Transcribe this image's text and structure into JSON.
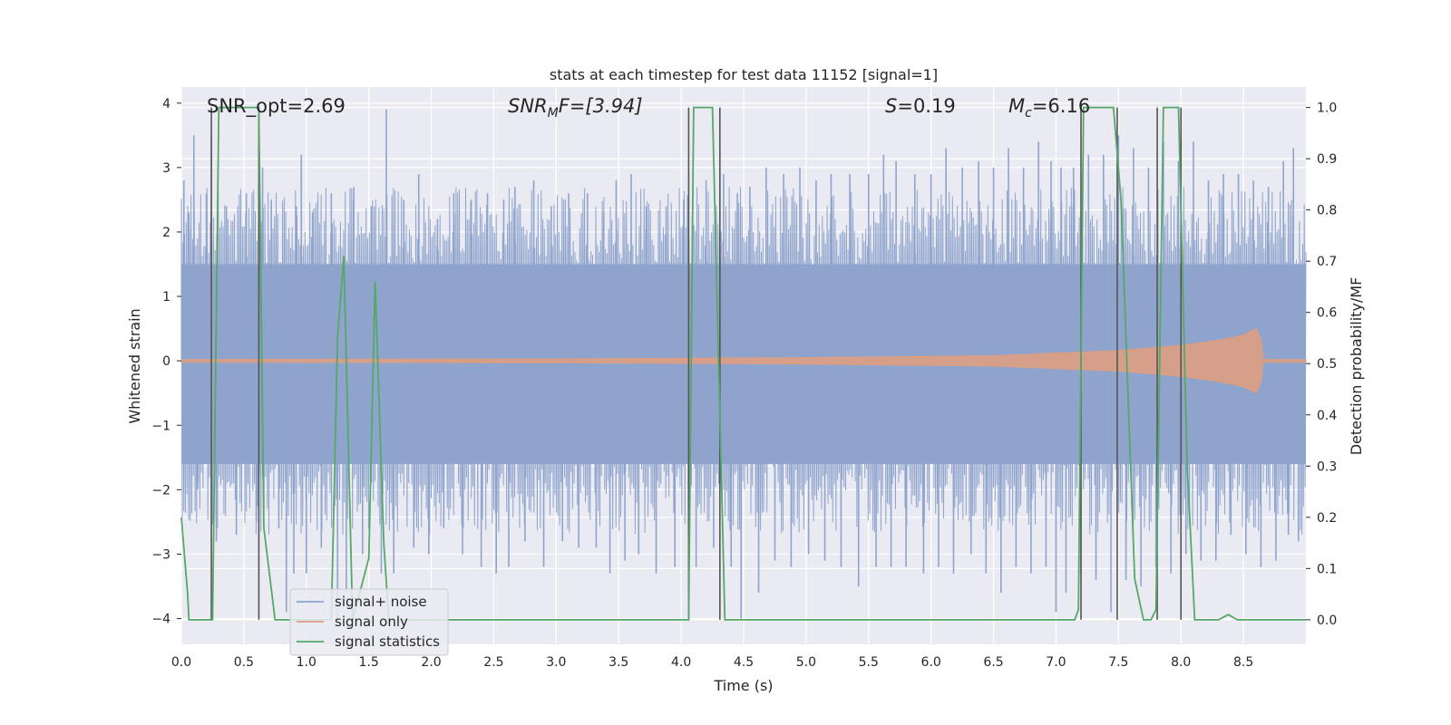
{
  "chart_data": {
    "type": "line",
    "title": "stats at each timestep for test data 11152 [signal=1]",
    "xlabel": "Time (s)",
    "ylabel": "Whitened strain",
    "y2label": "Detection probability/MF",
    "xlim": [
      0.0,
      9.0
    ],
    "ylim": [
      -4.4,
      4.25
    ],
    "y2lim": [
      -0.048,
      1.04
    ],
    "xticks": [
      "0.0",
      "0.5",
      "1.0",
      "1.5",
      "2.0",
      "2.5",
      "3.0",
      "3.5",
      "4.0",
      "4.5",
      "5.0",
      "5.5",
      "6.0",
      "6.5",
      "7.0",
      "7.5",
      "8.0",
      "8.5"
    ],
    "yticks": [
      "−4",
      "−3",
      "−2",
      "−1",
      "0",
      "1",
      "2",
      "3",
      "4"
    ],
    "y2ticks": [
      "0.0",
      "0.1",
      "0.2",
      "0.3",
      "0.4",
      "0.5",
      "0.6",
      "0.7",
      "0.8",
      "0.9",
      "1.0"
    ],
    "grid": true,
    "legend_position": "lower-left",
    "annotations": {
      "snr_opt": "SNR_opt=2.69",
      "snr_mf_main": "SNR",
      "snr_mf_sub": "M",
      "snr_mf_rest": "F=[3.94]",
      "s_main": "S",
      "s_rest": "=0.19",
      "mc_main": "M",
      "mc_sub": "c",
      "mc_rest": "=6.16"
    },
    "series": [
      {
        "name": "signal+ noise",
        "color": "#8fa4cc",
        "description_values": "noise band",
        "band_inner": [
          -1.6,
          1.5
        ],
        "spikes": [
          [
            0.02,
            2.8
          ],
          [
            0.06,
            2.3
          ],
          [
            0.1,
            3.5
          ],
          [
            0.13,
            -2.0
          ],
          [
            0.2,
            2.6
          ],
          [
            0.24,
            3.5
          ],
          [
            0.28,
            -2.8
          ],
          [
            0.36,
            2.4
          ],
          [
            0.44,
            -2.7
          ],
          [
            0.52,
            2.6
          ],
          [
            0.6,
            -2.5
          ],
          [
            0.65,
            3.0
          ],
          [
            0.72,
            2.5
          ],
          [
            0.78,
            -2.6
          ],
          [
            0.84,
            -3.9
          ],
          [
            0.9,
            -3.3
          ],
          [
            0.92,
            2.4
          ],
          [
            0.96,
            3.2
          ],
          [
            1.0,
            -3.3
          ],
          [
            1.05,
            2.3
          ],
          [
            1.12,
            -2.9
          ],
          [
            1.2,
            2.6
          ],
          [
            1.25,
            -4.1
          ],
          [
            1.32,
            -3.6
          ],
          [
            1.38,
            2.7
          ],
          [
            1.45,
            -3.0
          ],
          [
            1.52,
            2.4
          ],
          [
            1.6,
            -3.3
          ],
          [
            1.64,
            3.9
          ],
          [
            1.7,
            -3.3
          ],
          [
            1.78,
            2.5
          ],
          [
            1.86,
            -2.9
          ],
          [
            1.9,
            2.9
          ],
          [
            1.98,
            -3.0
          ],
          [
            2.05,
            2.2
          ],
          [
            2.1,
            -2.6
          ],
          [
            2.18,
            2.6
          ],
          [
            2.25,
            -3.0
          ],
          [
            2.32,
            2.5
          ],
          [
            2.4,
            -3.2
          ],
          [
            2.45,
            2.6
          ],
          [
            2.52,
            -3.3
          ],
          [
            2.58,
            2.5
          ],
          [
            2.62,
            -3.2
          ],
          [
            2.67,
            2.7
          ],
          [
            2.75,
            -2.8
          ],
          [
            2.82,
            2.8
          ],
          [
            2.9,
            -3.2
          ],
          [
            2.96,
            2.4
          ],
          [
            3.05,
            -2.8
          ],
          [
            3.1,
            2.6
          ],
          [
            3.18,
            -2.9
          ],
          [
            3.25,
            2.6
          ],
          [
            3.32,
            -2.9
          ],
          [
            3.38,
            2.3
          ],
          [
            3.43,
            -3.3
          ],
          [
            3.48,
            2.8
          ],
          [
            3.55,
            -3.1
          ],
          [
            3.6,
            2.9
          ],
          [
            3.66,
            -3.0
          ],
          [
            3.72,
            2.4
          ],
          [
            3.8,
            -3.3
          ],
          [
            3.88,
            2.4
          ],
          [
            3.95,
            -3.2
          ],
          [
            4.02,
            2.5
          ],
          [
            4.12,
            -3.2
          ],
          [
            4.2,
            2.8
          ],
          [
            4.26,
            -2.9
          ],
          [
            4.34,
            2.9
          ],
          [
            4.4,
            -3.2
          ],
          [
            4.45,
            2.6
          ],
          [
            4.48,
            -4.0
          ],
          [
            4.55,
            2.7
          ],
          [
            4.62,
            -3.6
          ],
          [
            4.68,
            3.0
          ],
          [
            4.75,
            -3.1
          ],
          [
            4.82,
            2.9
          ],
          [
            4.88,
            -3.2
          ],
          [
            4.95,
            3.0
          ],
          [
            5.02,
            -3.0
          ],
          [
            5.08,
            2.8
          ],
          [
            5.15,
            -3.1
          ],
          [
            5.2,
            2.9
          ],
          [
            5.28,
            -3.2
          ],
          [
            5.35,
            2.9
          ],
          [
            5.42,
            -3.5
          ],
          [
            5.5,
            2.9
          ],
          [
            5.56,
            -3.2
          ],
          [
            5.62,
            3.2
          ],
          [
            5.68,
            -3.2
          ],
          [
            5.72,
            3.1
          ],
          [
            5.8,
            -3.2
          ],
          [
            5.87,
            2.9
          ],
          [
            5.94,
            -3.3
          ],
          [
            6.0,
            2.9
          ],
          [
            6.06,
            -3.2
          ],
          [
            6.12,
            3.3
          ],
          [
            6.18,
            -3.3
          ],
          [
            6.25,
            3.0
          ],
          [
            6.32,
            -3.0
          ],
          [
            6.38,
            3.1
          ],
          [
            6.44,
            -3.3
          ],
          [
            6.5,
            3.0
          ],
          [
            6.56,
            -3.6
          ],
          [
            6.62,
            3.3
          ],
          [
            6.68,
            -3.2
          ],
          [
            6.74,
            3.0
          ],
          [
            6.8,
            -3.3
          ],
          [
            6.86,
            3.4
          ],
          [
            6.92,
            -3.2
          ],
          [
            6.96,
            3.1
          ],
          [
            7.0,
            -3.9
          ],
          [
            7.04,
            3.0
          ],
          [
            7.08,
            -3.6
          ],
          [
            7.14,
            3.0
          ],
          [
            7.2,
            -3.3
          ],
          [
            7.26,
            3.2
          ],
          [
            7.32,
            -3.4
          ],
          [
            7.38,
            3.2
          ],
          [
            7.44,
            -3.9
          ],
          [
            7.5,
            3.5
          ],
          [
            7.56,
            -3.4
          ],
          [
            7.62,
            3.3
          ],
          [
            7.68,
            -3.5
          ],
          [
            7.74,
            3.0
          ],
          [
            7.8,
            -3.2
          ],
          [
            7.86,
            3.4
          ],
          [
            7.92,
            -3.3
          ],
          [
            7.98,
            3.1
          ],
          [
            8.04,
            -3.0
          ],
          [
            8.1,
            3.4
          ],
          [
            8.16,
            -3.1
          ],
          [
            8.22,
            2.8
          ],
          [
            8.28,
            -3.1
          ],
          [
            8.34,
            2.9
          ],
          [
            8.4,
            -2.7
          ],
          [
            8.46,
            2.9
          ],
          [
            8.52,
            -3.0
          ],
          [
            8.58,
            2.8
          ],
          [
            8.64,
            -3.2
          ],
          [
            8.7,
            2.7
          ],
          [
            8.76,
            -3.1
          ],
          [
            8.82,
            3.1
          ],
          [
            8.86,
            -2.7
          ],
          [
            8.9,
            3.3
          ],
          [
            8.94,
            -2.8
          ]
        ]
      },
      {
        "name": "signal only",
        "color": "#dd9e82",
        "envelope": [
          [
            0.0,
            0.02
          ],
          [
            3.0,
            0.03
          ],
          [
            5.0,
            0.05
          ],
          [
            6.5,
            0.08
          ],
          [
            7.5,
            0.16
          ],
          [
            8.0,
            0.24
          ],
          [
            8.3,
            0.32
          ],
          [
            8.5,
            0.4
          ],
          [
            8.6,
            0.5
          ],
          [
            8.64,
            0.34
          ],
          [
            8.66,
            0.02
          ],
          [
            9.0,
            0.02
          ]
        ]
      },
      {
        "name": "signal statistics",
        "color": "#55a868",
        "points": [
          [
            0.0,
            0.2
          ],
          [
            0.05,
            0.05
          ],
          [
            0.06,
            0.0
          ],
          [
            0.25,
            0.0
          ],
          [
            0.3,
            1.0
          ],
          [
            0.62,
            1.0
          ],
          [
            0.66,
            0.18
          ],
          [
            0.75,
            0.0
          ],
          [
            1.2,
            0.0
          ],
          [
            1.25,
            0.55
          ],
          [
            1.3,
            0.71
          ],
          [
            1.37,
            0.0
          ],
          [
            1.5,
            0.12
          ],
          [
            1.55,
            0.66
          ],
          [
            1.62,
            0.15
          ],
          [
            1.66,
            0.0
          ],
          [
            2.5,
            0.0
          ],
          [
            3.45,
            0.0
          ],
          [
            4.06,
            0.0
          ],
          [
            4.1,
            1.0
          ],
          [
            4.25,
            1.0
          ],
          [
            4.35,
            0.0
          ],
          [
            6.6,
            0.0
          ],
          [
            7.15,
            0.0
          ],
          [
            7.18,
            0.02
          ],
          [
            7.22,
            1.0
          ],
          [
            7.46,
            1.0
          ],
          [
            7.52,
            0.82
          ],
          [
            7.63,
            0.08
          ],
          [
            7.7,
            0.0
          ],
          [
            7.76,
            0.0
          ],
          [
            7.8,
            0.02
          ],
          [
            7.86,
            1.0
          ],
          [
            7.98,
            1.0
          ],
          [
            8.05,
            0.3
          ],
          [
            8.11,
            0.0
          ],
          [
            8.3,
            0.0
          ],
          [
            8.38,
            0.01
          ],
          [
            8.45,
            0.0
          ],
          [
            9.0,
            0.0
          ]
        ]
      }
    ],
    "vertical_lines": [
      0.24,
      0.62,
      4.06,
      4.31,
      7.2,
      7.49,
      7.81,
      8.0
    ]
  }
}
